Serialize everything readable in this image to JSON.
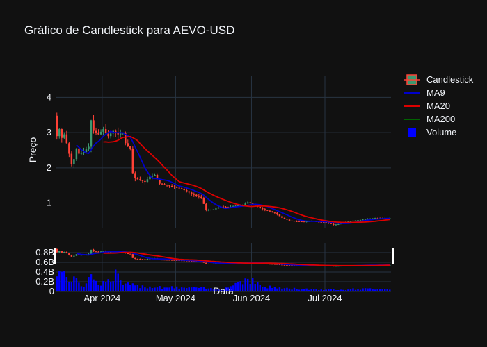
{
  "title": "Gráfico de Candlestick para AEVO-USD",
  "colors": {
    "background": "#111111",
    "grid": "#283442",
    "text": "#f2f5fa",
    "increasing": "#3d9970",
    "decreasing": "#ff4136",
    "ma9": "#0000cc",
    "ma20": "#dd0000",
    "ma200": "#006400",
    "volume": "#0000ff"
  },
  "chart_data": {
    "type": "candlestick",
    "title": "Gráfico de Candlestick para AEVO-USD",
    "xlabel": "Data",
    "ylabel": "Preço",
    "x_ticks": [
      "Apr 2024",
      "May 2024",
      "Jun 2024",
      "Jul 2024"
    ],
    "y_ticks": [
      "1",
      "2",
      "3",
      "4"
    ],
    "volume_ticks": [
      "0",
      "0.2B",
      "0.4B",
      "0.6B",
      "0.8B"
    ],
    "x_range": [
      "2024-03-13",
      "2024-07-27"
    ],
    "ylim": [
      0.3,
      4.6
    ],
    "volume_ylim": [
      0,
      1.0
    ],
    "legend": {
      "position": "top-right",
      "items": [
        {
          "label": "Candlestick",
          "icon": "candlestick"
        },
        {
          "label": "MA9",
          "icon": "line",
          "color": "#0000cc"
        },
        {
          "label": "MA20",
          "icon": "line",
          "color": "#dd0000"
        },
        {
          "label": "MA200",
          "icon": "line",
          "color": "#006400"
        },
        {
          "label": "Volume",
          "icon": "square",
          "color": "#0000ff"
        }
      ]
    },
    "close_anchors": [
      [
        "2024-03-13",
        2.9
      ],
      [
        "2024-03-14",
        3.1
      ],
      [
        "2024-03-15",
        2.85
      ],
      [
        "2024-03-16",
        2.95
      ],
      [
        "2024-03-17",
        2.7
      ],
      [
        "2024-03-18",
        2.4
      ],
      [
        "2024-03-19",
        2.1
      ],
      [
        "2024-03-20",
        2.25
      ],
      [
        "2024-03-21",
        2.55
      ],
      [
        "2024-03-22",
        2.4
      ],
      [
        "2024-03-24",
        2.45
      ],
      [
        "2024-03-26",
        2.6
      ],
      [
        "2024-03-27",
        3.35
      ],
      [
        "2024-03-28",
        3.05
      ],
      [
        "2024-03-30",
        2.95
      ],
      [
        "2024-04-01",
        3.1
      ],
      [
        "2024-04-03",
        2.9
      ],
      [
        "2024-04-05",
        3.05
      ],
      [
        "2024-04-07",
        2.95
      ],
      [
        "2024-04-09",
        3.0
      ],
      [
        "2024-04-10",
        2.7
      ],
      [
        "2024-04-12",
        2.55
      ],
      [
        "2024-04-13",
        1.85
      ],
      [
        "2024-04-14",
        1.7
      ],
      [
        "2024-04-16",
        1.65
      ],
      [
        "2024-04-18",
        1.6
      ],
      [
        "2024-04-20",
        1.75
      ],
      [
        "2024-04-22",
        1.8
      ],
      [
        "2024-04-24",
        1.55
      ],
      [
        "2024-04-27",
        1.5
      ],
      [
        "2024-04-30",
        1.45
      ],
      [
        "2024-05-03",
        1.4
      ],
      [
        "2024-05-06",
        1.3
      ],
      [
        "2024-05-09",
        1.2
      ],
      [
        "2024-05-11",
        1.15
      ],
      [
        "2024-05-13",
        0.8
      ],
      [
        "2024-05-16",
        0.82
      ],
      [
        "2024-05-19",
        0.9
      ],
      [
        "2024-05-22",
        0.88
      ],
      [
        "2024-05-25",
        0.92
      ],
      [
        "2024-05-28",
        0.95
      ],
      [
        "2024-05-30",
        1.02
      ],
      [
        "2024-06-01",
        0.98
      ],
      [
        "2024-06-04",
        0.85
      ],
      [
        "2024-06-07",
        0.78
      ],
      [
        "2024-06-10",
        0.72
      ],
      [
        "2024-06-13",
        0.58
      ],
      [
        "2024-06-16",
        0.5
      ],
      [
        "2024-06-19",
        0.48
      ],
      [
        "2024-06-22",
        0.47
      ],
      [
        "2024-06-25",
        0.49
      ],
      [
        "2024-06-28",
        0.46
      ],
      [
        "2024-07-01",
        0.45
      ],
      [
        "2024-07-04",
        0.38
      ],
      [
        "2024-07-06",
        0.4
      ],
      [
        "2024-07-09",
        0.46
      ],
      [
        "2024-07-12",
        0.5
      ],
      [
        "2024-07-15",
        0.52
      ],
      [
        "2024-07-18",
        0.55
      ],
      [
        "2024-07-21",
        0.57
      ],
      [
        "2024-07-24",
        0.56
      ],
      [
        "2024-07-27",
        0.57
      ]
    ],
    "volume_anchors": [
      [
        "2024-03-13",
        0.45
      ],
      [
        "2024-03-15",
        0.38
      ],
      [
        "2024-03-17",
        0.3
      ],
      [
        "2024-03-19",
        0.25
      ],
      [
        "2024-03-21",
        0.2
      ],
      [
        "2024-03-24",
        0.12
      ],
      [
        "2024-03-27",
        0.45
      ],
      [
        "2024-03-29",
        0.18
      ],
      [
        "2024-04-03",
        0.2
      ],
      [
        "2024-04-06",
        0.35
      ],
      [
        "2024-04-09",
        0.15
      ],
      [
        "2024-04-13",
        0.12
      ],
      [
        "2024-04-20",
        0.1
      ],
      [
        "2024-04-30",
        0.08
      ],
      [
        "2024-05-10",
        0.07
      ],
      [
        "2024-05-20",
        0.05
      ],
      [
        "2024-05-30",
        0.28
      ],
      [
        "2024-06-05",
        0.1
      ],
      [
        "2024-06-15",
        0.06
      ],
      [
        "2024-07-01",
        0.04
      ],
      [
        "2024-07-27",
        0.06
      ]
    ]
  }
}
